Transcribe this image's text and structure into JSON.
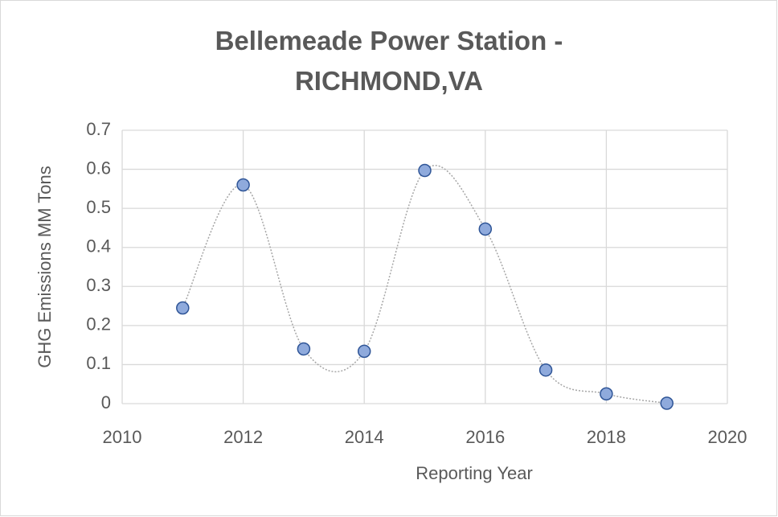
{
  "chart_data": {
    "type": "scatter",
    "title": "Bellemeade Power Station - RICHMOND,VA",
    "x_label": "Reporting Year",
    "y_label": "GHG Emissions MM Tons",
    "x": [
      2011,
      2012,
      2013,
      2014,
      2015,
      2016,
      2017,
      2018,
      2019
    ],
    "values": [
      0.245,
      0.56,
      0.14,
      0.134,
      0.597,
      0.447,
      0.086,
      0.025,
      0.001
    ],
    "color": "#8faadc",
    "edge_color": "#2f5597",
    "line_color": "#a6a6a6",
    "smooth_line": true,
    "xlim": [
      2010,
      2020
    ],
    "xticks": [
      2010,
      2012,
      2014,
      2016,
      2018,
      2020
    ],
    "ylim": [
      0,
      0.7
    ],
    "yticks": [
      0,
      0.1,
      0.2,
      0.3,
      0.4,
      0.5,
      0.6,
      0.7
    ],
    "grid": true
  }
}
